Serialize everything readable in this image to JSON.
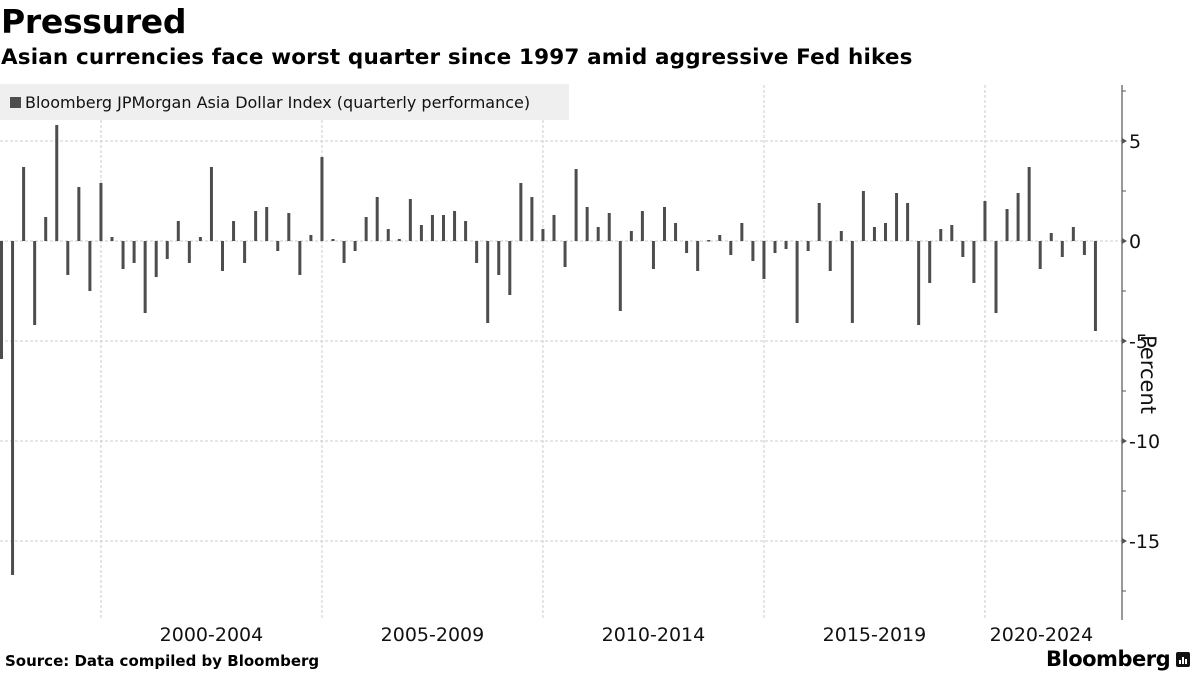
{
  "header": {
    "title": "Pressured",
    "subtitle": "Asian currencies face worst quarter since 1997 amid aggressive Fed hikes"
  },
  "legend": {
    "label": "Bloomberg JPMorgan Asia Dollar Index (quarterly performance)",
    "swatch_color": "#4d4d4d"
  },
  "footer": {
    "source": "Source: Data compiled by Bloomberg",
    "brand": "Bloomberg"
  },
  "chart_data": {
    "type": "bar",
    "title": "Pressured",
    "subtitle": "Asian currencies face worst quarter since 1997 amid aggressive Fed hikes",
    "series": [
      {
        "name": "Bloomberg JPMorgan Asia Dollar Index (quarterly performance)",
        "color": "#4d4d4d",
        "values": [
          -5.9,
          -16.7,
          3.7,
          -4.2,
          1.2,
          5.8,
          -1.7,
          2.7,
          -2.5,
          2.9,
          0.2,
          -1.4,
          -1.1,
          -3.6,
          -1.8,
          -0.9,
          1.0,
          -1.1,
          0.2,
          3.7,
          -1.5,
          1.0,
          -1.1,
          1.5,
          1.7,
          -0.5,
          1.4,
          -1.7,
          0.3,
          4.2,
          0.1,
          -1.1,
          -0.5,
          1.2,
          2.2,
          0.6,
          0.1,
          2.1,
          0.8,
          1.3,
          1.3,
          1.5,
          1.0,
          -1.1,
          -4.1,
          -1.7,
          -2.7,
          2.9,
          2.2,
          0.6,
          1.3,
          -1.3,
          3.6,
          1.7,
          0.7,
          1.4,
          -3.5,
          0.5,
          1.5,
          -1.4,
          1.7,
          0.9,
          -0.6,
          -1.5,
          0.05,
          0.3,
          -0.7,
          0.9,
          -1.0,
          -1.9,
          -0.6,
          -0.4,
          -4.1,
          -0.5,
          1.9,
          -1.5,
          0.5,
          -4.1,
          2.5,
          0.7,
          0.9,
          2.4,
          1.9,
          -4.2,
          -2.1,
          0.6,
          0.8,
          -0.8,
          -2.1,
          2.0,
          -3.6,
          1.6,
          2.4,
          3.7,
          -1.4,
          0.4,
          -0.8,
          0.7,
          -0.7,
          -4.5
        ]
      }
    ],
    "x_start_quarter": "1997 Q3",
    "x_frequency": "quarterly",
    "x_tick_labels": [
      "2000-2004",
      "2005-2009",
      "2010-2014",
      "2015-2019",
      "2020-2024"
    ],
    "x_gridline_index": [
      9,
      29,
      49,
      69,
      89
    ],
    "xlabel": "",
    "ylabel": "Percent",
    "y_ticks": [
      5,
      0,
      -5,
      -10,
      -15
    ],
    "y_minor_step": 2.5,
    "ylim": [
      -19,
      7.8
    ],
    "y_axis_side": "right",
    "grid": true,
    "legend_position": "top-left"
  }
}
